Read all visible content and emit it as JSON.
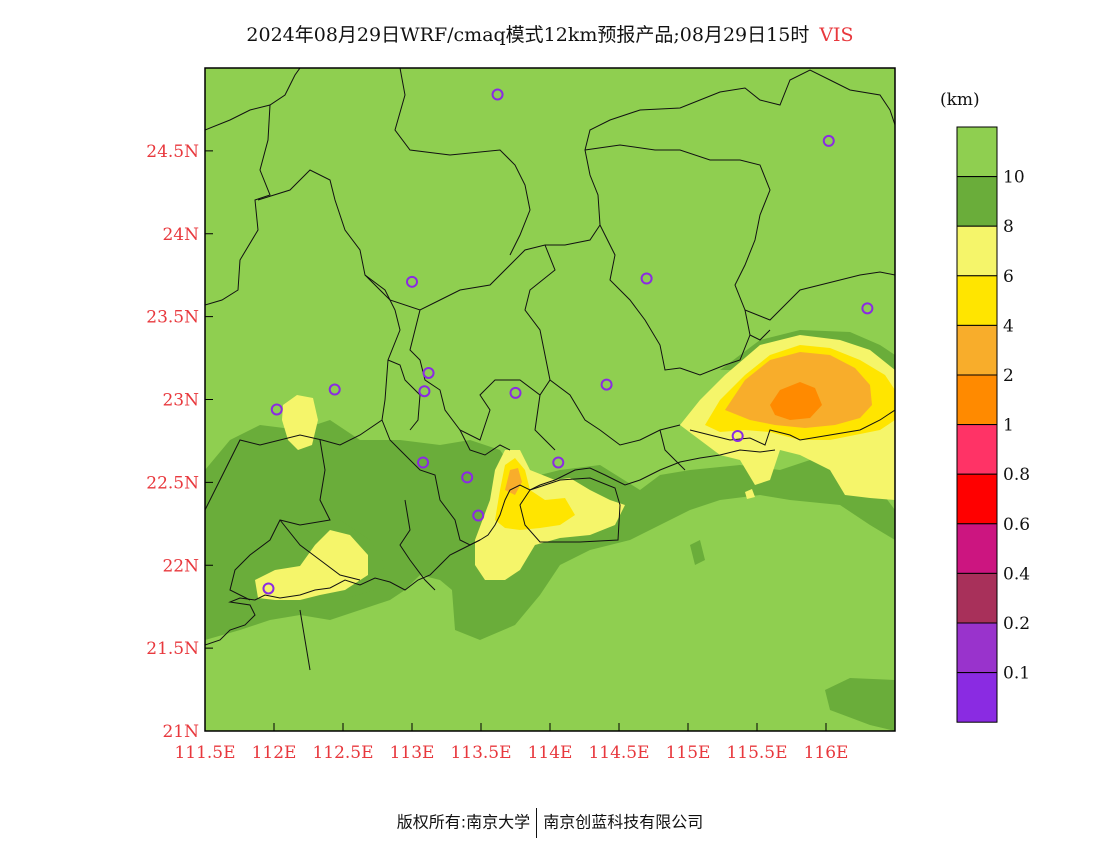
{
  "title": {
    "text": "2024年08月29日WRF/cmaq模式12km预报产品;08月29日15时",
    "variable": "VIS"
  },
  "map": {
    "lon_range": [
      111.5,
      116.5
    ],
    "lat_range": [
      21,
      25
    ],
    "lat_labels": [
      {
        "lat": 24.5,
        "text": "24.5N"
      },
      {
        "lat": 24,
        "text": "24N"
      },
      {
        "lat": 23.5,
        "text": "23.5N"
      },
      {
        "lat": 23,
        "text": "23N"
      },
      {
        "lat": 22.5,
        "text": "22.5N"
      },
      {
        "lat": 22,
        "text": "22N"
      },
      {
        "lat": 21.5,
        "text": "21.5N"
      },
      {
        "lat": 21,
        "text": "21N"
      }
    ],
    "lon_labels": [
      {
        "lon": 111.5,
        "text": "111.5E"
      },
      {
        "lon": 112,
        "text": "112E"
      },
      {
        "lon": 112.5,
        "text": "112.5E"
      },
      {
        "lon": 113,
        "text": "113E"
      },
      {
        "lon": 113.5,
        "text": "113.5E"
      },
      {
        "lon": 114,
        "text": "114E"
      },
      {
        "lon": 114.5,
        "text": "114.5E"
      },
      {
        "lon": 115,
        "text": "115E"
      },
      {
        "lon": 115.5,
        "text": "115.5E"
      },
      {
        "lon": 116,
        "text": "116E"
      }
    ],
    "stations": [
      {
        "lon": 113.62,
        "lat": 24.84
      },
      {
        "lon": 116.02,
        "lat": 24.56
      },
      {
        "lon": 113.0,
        "lat": 23.71
      },
      {
        "lon": 114.7,
        "lat": 23.73
      },
      {
        "lon": 116.3,
        "lat": 23.55
      },
      {
        "lon": 112.44,
        "lat": 23.06
      },
      {
        "lon": 113.12,
        "lat": 23.16
      },
      {
        "lon": 113.09,
        "lat": 23.05
      },
      {
        "lon": 113.75,
        "lat": 23.04
      },
      {
        "lon": 114.41,
        "lat": 23.09
      },
      {
        "lon": 112.02,
        "lat": 22.94
      },
      {
        "lon": 113.08,
        "lat": 22.62
      },
      {
        "lon": 113.4,
        "lat": 22.53
      },
      {
        "lon": 114.06,
        "lat": 22.62
      },
      {
        "lon": 113.48,
        "lat": 22.3
      },
      {
        "lon": 115.36,
        "lat": 22.78
      },
      {
        "lon": 111.96,
        "lat": 21.86
      }
    ]
  },
  "legend": {
    "unit": "(km)",
    "bins": [
      {
        "label": "10",
        "color": "#8fcf50"
      },
      {
        "label": "8",
        "color": "#6aad3a"
      },
      {
        "label": "6",
        "color": "#f5f56a"
      },
      {
        "label": "4",
        "color": "#ffe500"
      },
      {
        "label": "2",
        "color": "#f8ad2b"
      },
      {
        "label": "1",
        "color": "#ff8a00"
      },
      {
        "label": "0.8",
        "color": "#ff3366"
      },
      {
        "label": "0.6",
        "color": "#ff0000"
      },
      {
        "label": "0.4",
        "color": "#cc1580"
      },
      {
        "label": "0.2",
        "color": "#a8305a"
      },
      {
        "label": "0.1",
        "color": "#9933cc"
      },
      {
        "label": "",
        "color": "#8a2be2"
      }
    ]
  },
  "footer": {
    "left": "版权所有:南京大学",
    "right": "南京创蓝科技有限公司"
  }
}
